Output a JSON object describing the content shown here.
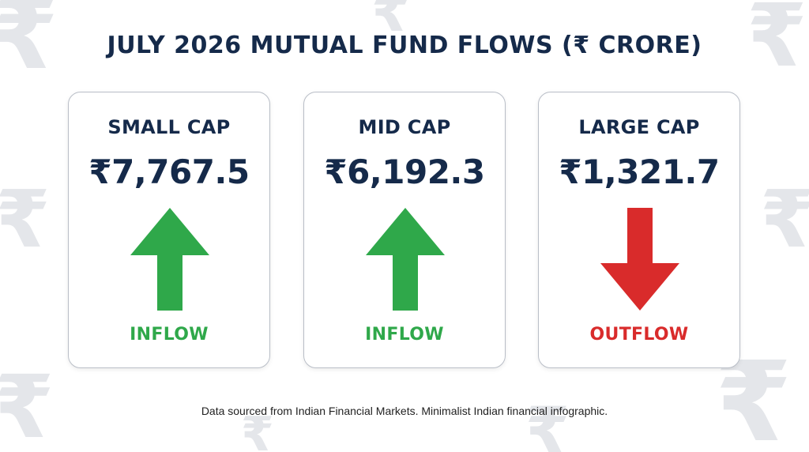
{
  "title": "JULY 2026 MUTUAL FUND FLOWS (₹ CRORE)",
  "watermark_glyph": "₹",
  "colors": {
    "navy": "#152a4a",
    "inflow_green": "#2fa84a",
    "outflow_red": "#d92b2b",
    "watermark": "#e4e6ea"
  },
  "cards": [
    {
      "label": "SMALL CAP",
      "value": "₹7,767.5",
      "direction": "up",
      "flow": "INFLOW",
      "icon": "arrow-up-icon"
    },
    {
      "label": "MID CAP",
      "value": "₹6,192.3",
      "direction": "up",
      "flow": "INFLOW",
      "icon": "arrow-up-icon"
    },
    {
      "label": "LARGE CAP",
      "value": "₹1,321.7",
      "direction": "down",
      "flow": "OUTFLOW",
      "icon": "arrow-down-icon"
    }
  ],
  "footer": "Data sourced from Indian Financial Markets. Minimalist Indian financial infographic."
}
